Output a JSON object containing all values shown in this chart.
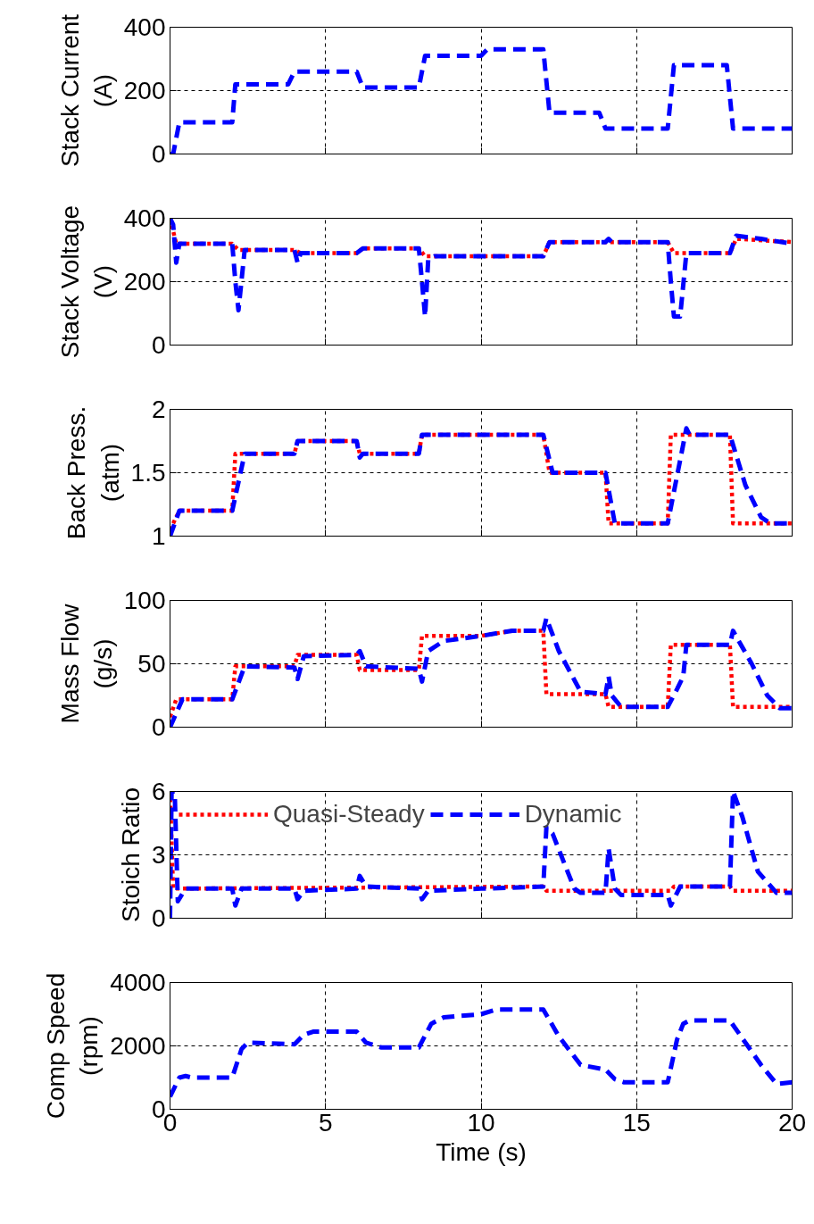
{
  "chart_data": [
    {
      "type": "line",
      "ylabel": "Stack Current (A)",
      "xlim": [
        0,
        20
      ],
      "xticks": [
        0,
        5,
        10,
        15,
        20
      ],
      "ylim": [
        0,
        400
      ],
      "yticks": [
        0,
        200,
        400
      ],
      "grid": true,
      "tick_labels": "y",
      "series": [
        {
          "color": "#0000ff",
          "line_style": "dashed",
          "x": [
            0,
            0.1,
            0.3,
            2.0,
            2.1,
            3.8,
            4.0,
            6.0,
            6.2,
            8.0,
            8.2,
            10.0,
            10.2,
            12.0,
            12.2,
            13.8,
            14.0,
            16.0,
            16.2,
            17.9,
            18.1,
            20
          ],
          "values": [
            0,
            0,
            100,
            100,
            220,
            220,
            260,
            260,
            210,
            210,
            310,
            310,
            330,
            330,
            130,
            130,
            80,
            80,
            280,
            280,
            80,
            80
          ]
        }
      ]
    },
    {
      "type": "line",
      "ylabel": "Stack Voltage (V)",
      "xlim": [
        0,
        20
      ],
      "xticks": [
        0,
        5,
        10,
        15,
        20
      ],
      "ylim": [
        0,
        400
      ],
      "yticks": [
        0,
        200,
        400
      ],
      "grid": true,
      "tick_labels": "y",
      "series": [
        {
          "color": "#ff0000",
          "line_style": "dotted",
          "x": [
            0,
            0.2,
            2.0,
            2.2,
            4.0,
            4.2,
            6.0,
            6.2,
            8.0,
            8.2,
            12.0,
            12.2,
            16.0,
            16.2,
            18.0,
            18.2,
            20
          ],
          "values": [
            400,
            320,
            320,
            300,
            300,
            290,
            290,
            305,
            305,
            280,
            280,
            325,
            325,
            290,
            290,
            335,
            325
          ]
        },
        {
          "color": "#0000ff",
          "line_style": "dashed",
          "x": [
            0,
            0.1,
            0.2,
            0.3,
            2.0,
            2.1,
            2.2,
            2.4,
            4.0,
            4.1,
            4.2,
            6.0,
            6.2,
            8.0,
            8.1,
            8.2,
            8.3,
            8.5,
            12.0,
            12.2,
            14.0,
            14.1,
            14.2,
            16.0,
            16.1,
            16.2,
            16.4,
            16.6,
            18.0,
            18.2,
            19.0,
            20
          ],
          "values": [
            400,
            380,
            260,
            320,
            320,
            200,
            110,
            300,
            300,
            260,
            290,
            290,
            305,
            305,
            200,
            90,
            270,
            280,
            280,
            325,
            325,
            335,
            325,
            325,
            200,
            90,
            90,
            290,
            290,
            345,
            335,
            320
          ]
        }
      ]
    },
    {
      "type": "line",
      "ylabel": "Back Press. (atm)",
      "xlim": [
        0,
        20
      ],
      "xticks": [
        0,
        5,
        10,
        15,
        20
      ],
      "ylim": [
        1,
        2
      ],
      "yticks": [
        1,
        1.5,
        2
      ],
      "grid": true,
      "tick_labels": "y",
      "series": [
        {
          "color": "#ff0000",
          "line_style": "dotted",
          "x": [
            0,
            0.3,
            2.0,
            2.1,
            4.0,
            4.1,
            6.0,
            6.1,
            8.0,
            8.1,
            12.0,
            12.2,
            14.0,
            14.1,
            16.0,
            16.1,
            18.0,
            18.1,
            20
          ],
          "values": [
            1.05,
            1.2,
            1.2,
            1.65,
            1.65,
            1.75,
            1.75,
            1.65,
            1.65,
            1.8,
            1.8,
            1.5,
            1.5,
            1.1,
            1.1,
            1.8,
            1.8,
            1.1,
            1.1
          ]
        },
        {
          "color": "#0000ff",
          "line_style": "dashed",
          "x": [
            0,
            0.3,
            2.0,
            2.4,
            4.0,
            4.1,
            6.0,
            6.1,
            6.2,
            8.0,
            8.1,
            12.0,
            12.3,
            14.0,
            14.3,
            16.0,
            16.4,
            16.6,
            16.7,
            18.0,
            18.5,
            19.0,
            19.3,
            20
          ],
          "values": [
            1.0,
            1.2,
            1.2,
            1.65,
            1.65,
            1.75,
            1.75,
            1.62,
            1.65,
            1.65,
            1.8,
            1.8,
            1.5,
            1.5,
            1.1,
            1.1,
            1.6,
            1.85,
            1.8,
            1.8,
            1.4,
            1.15,
            1.1,
            1.1
          ]
        }
      ]
    },
    {
      "type": "line",
      "ylabel": "Mass Flow (g/s)",
      "xlim": [
        0,
        20
      ],
      "xticks": [
        0,
        5,
        10,
        15,
        20
      ],
      "ylim": [
        0,
        100
      ],
      "yticks": [
        0,
        50,
        100
      ],
      "grid": true,
      "tick_labels": "y",
      "series": [
        {
          "color": "#ff0000",
          "line_style": "dotted",
          "x": [
            0,
            0.2,
            2.0,
            2.1,
            4.0,
            4.1,
            6.0,
            6.1,
            8.0,
            8.1,
            10.0,
            11.0,
            12.0,
            12.1,
            14.0,
            14.1,
            16.0,
            16.1,
            18.0,
            18.1,
            20
          ],
          "values": [
            8,
            22,
            22,
            48,
            48,
            57,
            57,
            45,
            45,
            72,
            72,
            76,
            76,
            26,
            26,
            16,
            16,
            65,
            65,
            16,
            16
          ]
        },
        {
          "color": "#0000ff",
          "line_style": "dashed",
          "x": [
            0,
            0.4,
            2.0,
            2.4,
            4.0,
            4.1,
            4.3,
            6.0,
            6.1,
            6.3,
            8.0,
            8.1,
            8.3,
            8.8,
            10.0,
            11.0,
            12.0,
            12.1,
            12.5,
            13.2,
            14.0,
            14.1,
            14.2,
            14.5,
            16.0,
            16.3,
            16.5,
            16.6,
            18.0,
            18.1,
            18.7,
            19.2,
            19.6,
            20
          ],
          "values": [
            0,
            22,
            22,
            48,
            47,
            38,
            56,
            57,
            60,
            48,
            46,
            36,
            60,
            68,
            72,
            76,
            76,
            86,
            60,
            28,
            26,
            40,
            25,
            16,
            16,
            30,
            40,
            65,
            65,
            76,
            50,
            25,
            15,
            15
          ]
        }
      ]
    },
    {
      "type": "line",
      "ylabel": "Stoich Ratio",
      "xlim": [
        0,
        20
      ],
      "xticks": [
        0,
        5,
        10,
        15,
        20
      ],
      "ylim": [
        0,
        6
      ],
      "yticks": [
        0,
        3,
        6
      ],
      "grid": true,
      "tick_labels": "y",
      "legend": "top left",
      "series": [
        {
          "name": "Quasi-Steady",
          "color": "#ff0000",
          "line_style": "dotted",
          "x": [
            0,
            0.1,
            12.0,
            12.1,
            16.1,
            16.2,
            18.0,
            18.1,
            20
          ],
          "values": [
            6,
            1.4,
            1.5,
            1.3,
            1.3,
            1.5,
            1.5,
            1.3,
            1.3
          ]
        },
        {
          "name": "Dynamic",
          "color": "#0000ff",
          "line_style": "dashed",
          "x": [
            0,
            0.05,
            0.15,
            0.25,
            0.5,
            2.0,
            2.1,
            2.3,
            4.0,
            4.1,
            4.3,
            6.0,
            6.1,
            6.3,
            8.0,
            8.1,
            8.3,
            10.0,
            12.0,
            12.1,
            12.3,
            12.7,
            13.0,
            13.2,
            14.0,
            14.1,
            14.3,
            14.5,
            16.0,
            16.1,
            16.4,
            18.0,
            18.1,
            18.4,
            18.9,
            19.5,
            20
          ],
          "values": [
            0,
            6,
            6,
            0.8,
            1.4,
            1.4,
            0.6,
            1.4,
            1.4,
            0.9,
            1.3,
            1.4,
            2.0,
            1.5,
            1.4,
            0.9,
            1.3,
            1.4,
            1.5,
            4.3,
            4.0,
            2.5,
            1.4,
            1.2,
            1.2,
            3.3,
            1.4,
            1.1,
            1.1,
            0.6,
            1.5,
            1.5,
            6.0,
            4.8,
            2.2,
            1.2,
            1.2
          ]
        }
      ]
    },
    {
      "type": "line",
      "xlabel": "Time (s)",
      "ylabel": "Comp Speed (rpm)",
      "xlim": [
        0,
        20
      ],
      "xticks": [
        0,
        5,
        10,
        15,
        20
      ],
      "ylim": [
        0,
        4000
      ],
      "yticks": [
        0,
        2000,
        4000
      ],
      "grid": true,
      "series": [
        {
          "color": "#0000ff",
          "line_style": "dashed",
          "x": [
            0,
            0.3,
            0.5,
            0.7,
            2.0,
            2.3,
            2.5,
            4.0,
            4.3,
            4.6,
            6.0,
            6.3,
            6.8,
            8.0,
            8.4,
            8.8,
            10.0,
            10.5,
            12.0,
            12.5,
            13.2,
            14.0,
            14.3,
            14.6,
            16.0,
            16.3,
            16.5,
            16.7,
            18.0,
            18.5,
            19.0,
            19.5,
            20
          ],
          "values": [
            400,
            1000,
            1050,
            1000,
            1000,
            1900,
            2100,
            2050,
            2350,
            2450,
            2450,
            2100,
            1950,
            1950,
            2700,
            2900,
            3000,
            3150,
            3150,
            2300,
            1400,
            1250,
            950,
            850,
            850,
            2200,
            2700,
            2800,
            2800,
            2100,
            1400,
            800,
            850
          ]
        }
      ]
    }
  ]
}
